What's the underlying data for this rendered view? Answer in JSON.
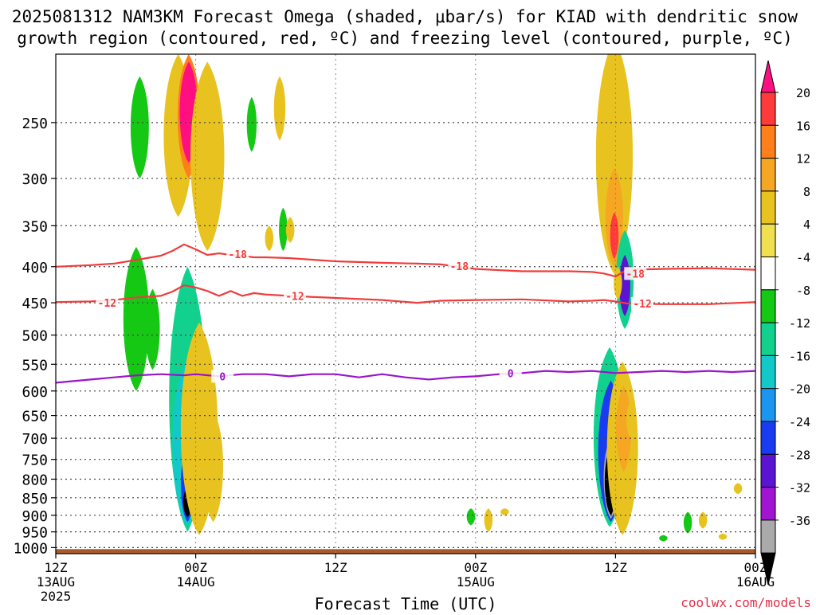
{
  "chart_data": {
    "type": "heatmap",
    "title_line1": "2025081312 NAM3KM Forecast Omega (shaded, μbar/s) for KIAD with dendritic snow",
    "title_line2": "growth region (contoured, red, ºC) and freezing level (contoured, purple, ºC)",
    "xlabel": "Forecast Time (UTC)",
    "ylabel": "",
    "credit": "coolwx.com/models",
    "x_ticks": [
      {
        "hour": 0,
        "label": "12Z",
        "sub": "13AUG",
        "sub2": "2025"
      },
      {
        "hour": 12,
        "label": "00Z",
        "sub": "14AUG",
        "sub2": ""
      },
      {
        "hour": 24,
        "label": "12Z",
        "sub": "",
        "sub2": ""
      },
      {
        "hour": 36,
        "label": "00Z",
        "sub": "15AUG",
        "sub2": ""
      },
      {
        "hour": 48,
        "label": "12Z",
        "sub": "",
        "sub2": ""
      },
      {
        "hour": 60,
        "label": "00Z",
        "sub": "16AUG",
        "sub2": ""
      }
    ],
    "x_range_hours": [
      0,
      60
    ],
    "y_ticks": [
      250,
      300,
      350,
      400,
      450,
      500,
      550,
      600,
      650,
      700,
      750,
      800,
      850,
      900,
      950,
      1000
    ],
    "y_range_hpa": [
      200,
      1020
    ],
    "y_scale": "log-pressure",
    "grid": true,
    "colorbar": {
      "labels": [
        "20",
        "16",
        "12",
        "8",
        "4",
        "-4",
        "-8",
        "-12",
        "-16",
        "-20",
        "-24",
        "-28",
        "-32",
        "-36"
      ],
      "colors": [
        "#ff0f7f",
        "#ff3a3a",
        "#ff7f1a",
        "#f5a623",
        "#e8c31f",
        "#f0e050",
        "#ffffff",
        "#14c814",
        "#12d18e",
        "#12c8c8",
        "#1a96f0",
        "#1a3cf0",
        "#5a14d2",
        "#a014d2",
        "#aaaaaa",
        "#000000"
      ]
    },
    "contours": [
      {
        "name": "-18",
        "color": "#f03c3c",
        "points": [
          [
            0,
            400
          ],
          [
            3,
            398
          ],
          [
            5,
            396
          ],
          [
            7,
            391
          ],
          [
            9,
            386
          ],
          [
            10,
            380
          ],
          [
            11,
            372
          ],
          [
            12,
            378
          ],
          [
            13,
            385
          ],
          [
            14,
            383
          ],
          [
            15,
            385
          ],
          [
            16,
            386
          ],
          [
            17,
            388
          ],
          [
            18,
            388
          ],
          [
            20,
            389
          ],
          [
            24,
            393
          ],
          [
            28,
            395
          ],
          [
            31,
            396
          ],
          [
            33,
            397
          ],
          [
            36,
            403
          ],
          [
            40,
            406
          ],
          [
            44,
            406
          ],
          [
            46,
            407
          ],
          [
            47,
            409
          ],
          [
            48,
            413
          ],
          [
            49,
            404
          ],
          [
            52,
            403
          ],
          [
            56,
            402
          ],
          [
            60,
            404
          ]
        ],
        "labels": [
          [
            15.6,
            384
          ],
          [
            34.6,
            399
          ],
          [
            49.7,
            409
          ]
        ]
      },
      {
        "name": "-12",
        "color": "#f03c3c",
        "points": [
          [
            0,
            449
          ],
          [
            3,
            448
          ],
          [
            5,
            446
          ],
          [
            7,
            442
          ],
          [
            9,
            440
          ],
          [
            10,
            434
          ],
          [
            11,
            425
          ],
          [
            12,
            428
          ],
          [
            13,
            433
          ],
          [
            14,
            440
          ],
          [
            15,
            433
          ],
          [
            16,
            440
          ],
          [
            17,
            436
          ],
          [
            18,
            438
          ],
          [
            20,
            440
          ],
          [
            24,
            443
          ],
          [
            28,
            446
          ],
          [
            31,
            450
          ],
          [
            33,
            447
          ],
          [
            36,
            446
          ],
          [
            40,
            445
          ],
          [
            44,
            448
          ],
          [
            46,
            447
          ],
          [
            47,
            446
          ],
          [
            48,
            448
          ],
          [
            49,
            451
          ],
          [
            52,
            452
          ],
          [
            56,
            452
          ],
          [
            60,
            449
          ]
        ],
        "labels": [
          [
            4.4,
            450
          ],
          [
            20.5,
            440
          ],
          [
            50.3,
            451
          ]
        ]
      },
      {
        "name": "0",
        "color": "#9a14c8",
        "points": [
          [
            0,
            584
          ],
          [
            3,
            578
          ],
          [
            5,
            574
          ],
          [
            7,
            570
          ],
          [
            9,
            568
          ],
          [
            11,
            570
          ],
          [
            12,
            568
          ],
          [
            14,
            572
          ],
          [
            16,
            568
          ],
          [
            18,
            568
          ],
          [
            20,
            572
          ],
          [
            22,
            568
          ],
          [
            24,
            568
          ],
          [
            26,
            574
          ],
          [
            28,
            568
          ],
          [
            30,
            574
          ],
          [
            32,
            578
          ],
          [
            34,
            574
          ],
          [
            36,
            572
          ],
          [
            38,
            568
          ],
          [
            40,
            566
          ],
          [
            42,
            562
          ],
          [
            44,
            564
          ],
          [
            46,
            562
          ],
          [
            48,
            566
          ],
          [
            50,
            564
          ],
          [
            52,
            562
          ],
          [
            54,
            564
          ],
          [
            56,
            562
          ],
          [
            58,
            564
          ],
          [
            60,
            562
          ]
        ],
        "labels": [
          [
            14.3,
            572
          ],
          [
            39,
            566
          ]
        ]
      }
    ],
    "shaded_regions": [
      {
        "hour": 7.2,
        "p_top": 215,
        "p_bot": 300,
        "value": -6
      },
      {
        "hour": 10.5,
        "p_top": 200,
        "p_bot": 340,
        "value": 6
      },
      {
        "hour": 11.4,
        "p_top": 200,
        "p_bot": 300,
        "value": 12
      },
      {
        "hour": 11.4,
        "p_top": 205,
        "p_bot": 285,
        "value": 20
      },
      {
        "hour": 13.0,
        "p_top": 205,
        "p_bot": 380,
        "value": 6
      },
      {
        "hour": 16.8,
        "p_top": 230,
        "p_bot": 275,
        "value": -6
      },
      {
        "hour": 19.2,
        "p_top": 215,
        "p_bot": 265,
        "value": 5
      },
      {
        "hour": 18.3,
        "p_top": 350,
        "p_bot": 380,
        "value": 4
      },
      {
        "hour": 19.5,
        "p_top": 330,
        "p_bot": 380,
        "value": -5
      },
      {
        "hour": 20.1,
        "p_top": 340,
        "p_bot": 370,
        "value": 4
      },
      {
        "hour": 6.9,
        "p_top": 375,
        "p_bot": 600,
        "value": -6
      },
      {
        "hour": 8.3,
        "p_top": 430,
        "p_bot": 560,
        "value": -5
      },
      {
        "hour": 11.3,
        "p_top": 400,
        "p_bot": 950,
        "value": -8
      },
      {
        "hour": 11.3,
        "p_top": 540,
        "p_bot": 935,
        "value": -14
      },
      {
        "hour": 11.3,
        "p_top": 720,
        "p_bot": 920,
        "value": -22
      },
      {
        "hour": 11.3,
        "p_top": 820,
        "p_bot": 905,
        "value": -38
      },
      {
        "hour": 12.3,
        "p_top": 480,
        "p_bot": 960,
        "value": 6
      },
      {
        "hour": 13.5,
        "p_top": 640,
        "p_bot": 920,
        "value": 5
      },
      {
        "hour": 47.9,
        "p_top": 190,
        "p_bot": 410,
        "value": 5
      },
      {
        "hour": 47.9,
        "p_top": 290,
        "p_bot": 400,
        "value": 10
      },
      {
        "hour": 47.9,
        "p_top": 335,
        "p_bot": 390,
        "value": 18
      },
      {
        "hour": 48.8,
        "p_top": 355,
        "p_bot": 490,
        "value": -8
      },
      {
        "hour": 48.8,
        "p_top": 385,
        "p_bot": 470,
        "value": -26
      },
      {
        "hour": 48.2,
        "p_top": 400,
        "p_bot": 445,
        "value": 5
      },
      {
        "hour": 47.5,
        "p_top": 520,
        "p_bot": 935,
        "value": -8
      },
      {
        "hour": 47.6,
        "p_top": 580,
        "p_bot": 920,
        "value": -20
      },
      {
        "hour": 47.6,
        "p_top": 700,
        "p_bot": 910,
        "value": -33
      },
      {
        "hour": 47.6,
        "p_top": 720,
        "p_bot": 900,
        "value": -38
      },
      {
        "hour": 48.6,
        "p_top": 545,
        "p_bot": 960,
        "value": 6
      },
      {
        "hour": 48.7,
        "p_top": 590,
        "p_bot": 780,
        "value": 11
      },
      {
        "hour": 49.3,
        "p_top": 620,
        "p_bot": 700,
        "value": 5
      },
      {
        "hour": 35.6,
        "p_top": 880,
        "p_bot": 930,
        "value": -7
      },
      {
        "hour": 37.1,
        "p_top": 880,
        "p_bot": 950,
        "value": 5
      },
      {
        "hour": 38.5,
        "p_top": 880,
        "p_bot": 900,
        "value": 4
      },
      {
        "hour": 52.1,
        "p_top": 960,
        "p_bot": 980,
        "value": -6
      },
      {
        "hour": 54.2,
        "p_top": 890,
        "p_bot": 955,
        "value": -7
      },
      {
        "hour": 55.5,
        "p_top": 890,
        "p_bot": 940,
        "value": 5
      },
      {
        "hour": 57.2,
        "p_top": 955,
        "p_bot": 975,
        "value": 4
      },
      {
        "hour": 58.5,
        "p_top": 810,
        "p_bot": 840,
        "value": 4
      }
    ],
    "terrain": {
      "color": "#a85a2a",
      "p_top": 1005
    }
  }
}
